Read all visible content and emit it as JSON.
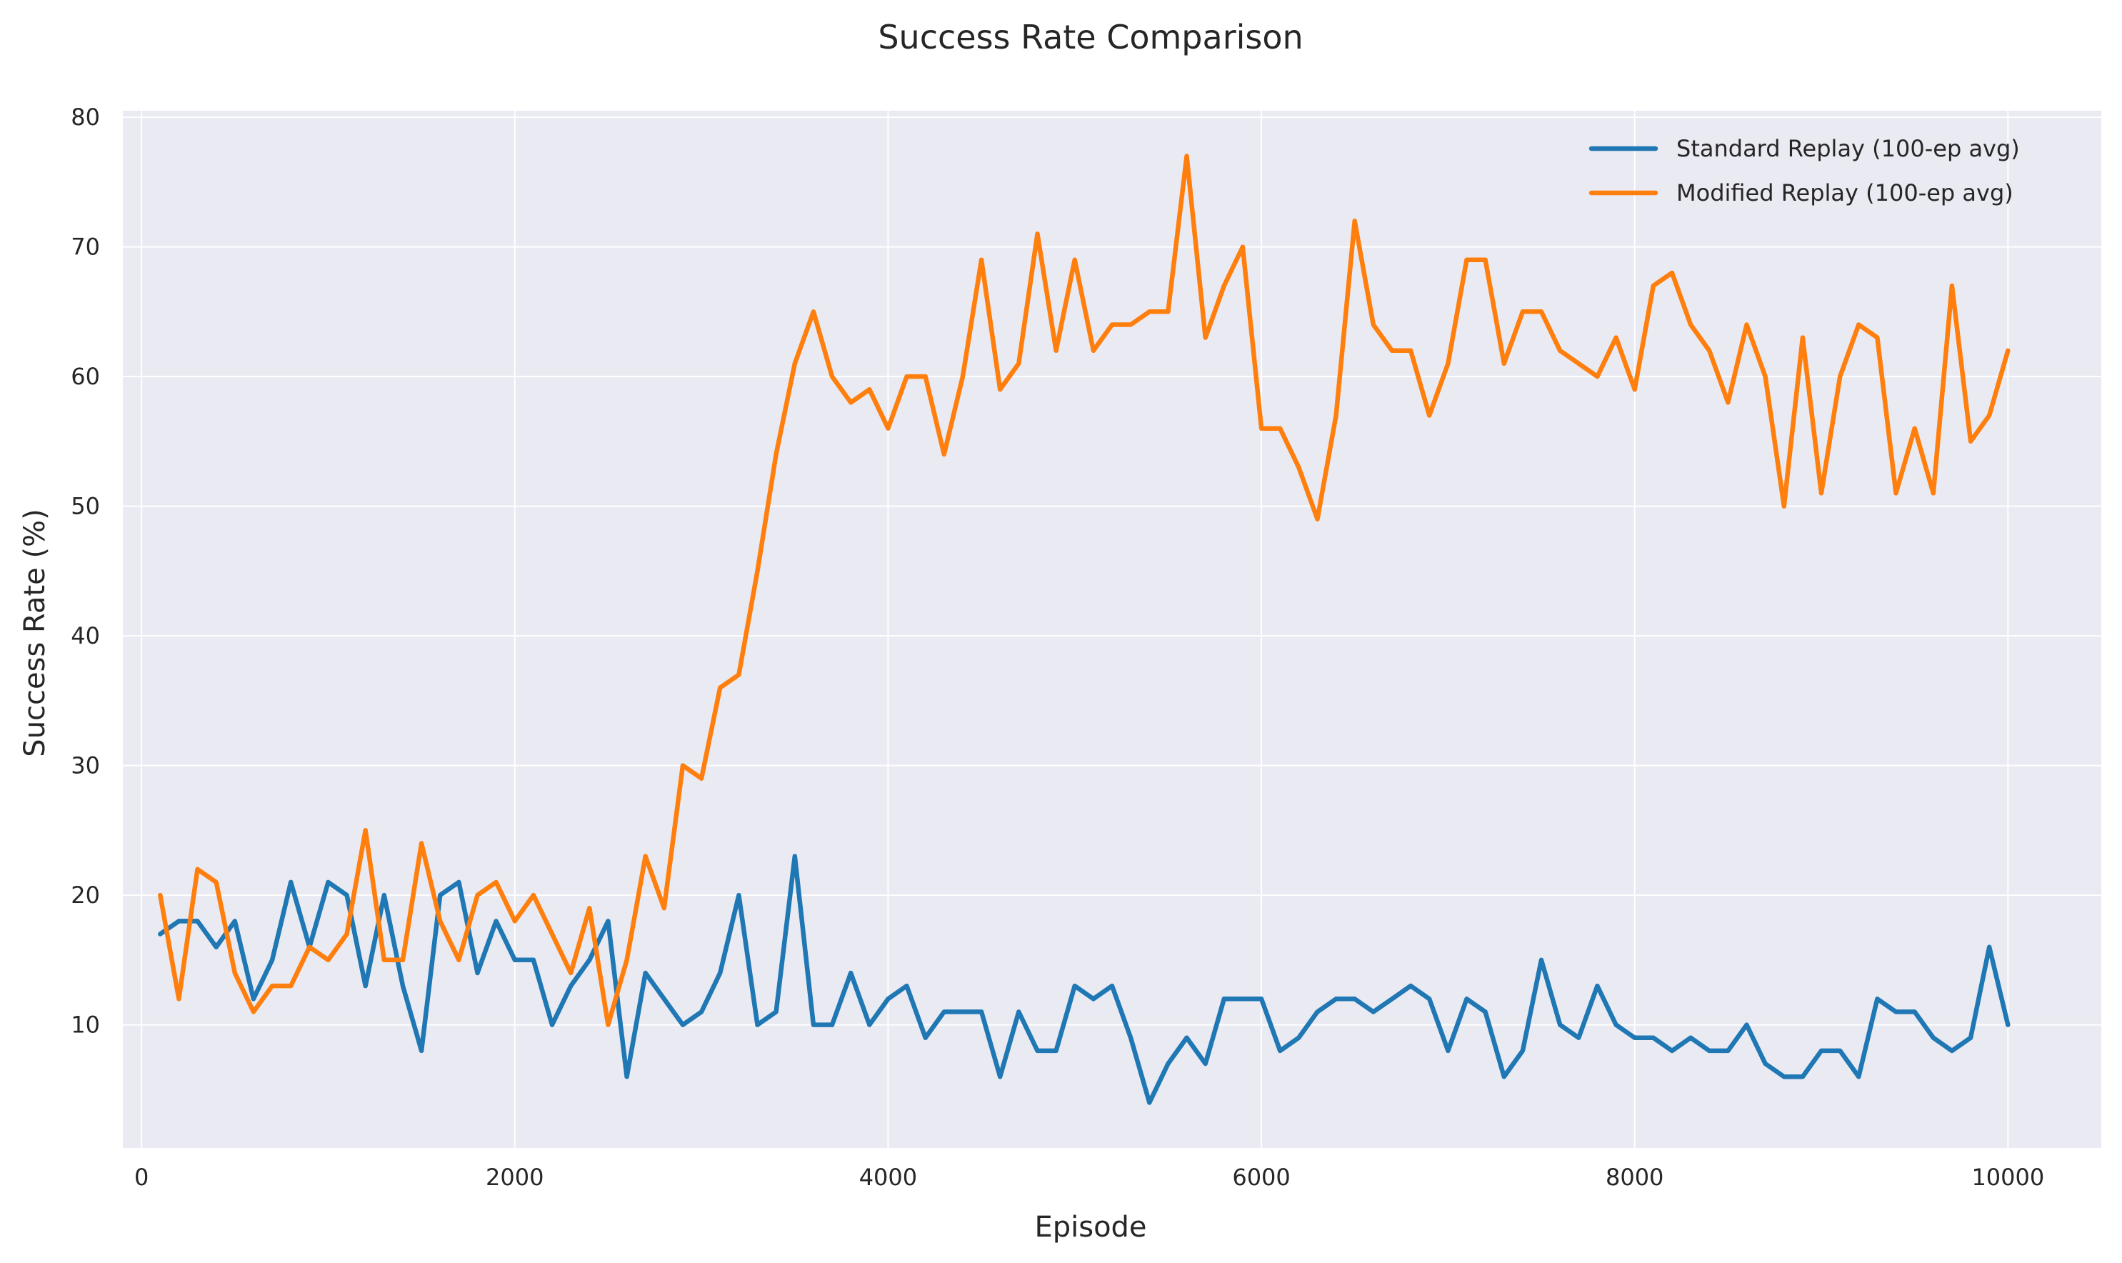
{
  "chart_data": {
    "type": "line",
    "title": "Success Rate Comparison",
    "xlabel": "Episode",
    "ylabel": "Success Rate (%)",
    "xlim": [
      -100,
      10500
    ],
    "ylim": [
      0.5,
      80.5
    ],
    "x_ticks": [
      0,
      2000,
      4000,
      6000,
      8000,
      10000
    ],
    "y_ticks": [
      10,
      20,
      30,
      40,
      50,
      60,
      70,
      80
    ],
    "grid": true,
    "legend_position": "top-right",
    "x": [
      100,
      200,
      300,
      400,
      500,
      600,
      700,
      800,
      900,
      1000,
      1100,
      1200,
      1300,
      1400,
      1500,
      1600,
      1700,
      1800,
      1900,
      2000,
      2100,
      2200,
      2300,
      2400,
      2500,
      2600,
      2700,
      2800,
      2900,
      3000,
      3100,
      3200,
      3300,
      3400,
      3500,
      3600,
      3700,
      3800,
      3900,
      4000,
      4100,
      4200,
      4300,
      4400,
      4500,
      4600,
      4700,
      4800,
      4900,
      5000,
      5100,
      5200,
      5300,
      5400,
      5500,
      5600,
      5700,
      5800,
      5900,
      6000,
      6100,
      6200,
      6300,
      6400,
      6500,
      6600,
      6700,
      6800,
      6900,
      7000,
      7100,
      7200,
      7300,
      7400,
      7500,
      7600,
      7700,
      7800,
      7900,
      8000,
      8100,
      8200,
      8300,
      8400,
      8500,
      8600,
      8700,
      8800,
      8900,
      9000,
      9100,
      9200,
      9300,
      9400,
      9500,
      9600,
      9700,
      9800,
      9900,
      10000
    ],
    "series": [
      {
        "name": "Standard Replay (100-ep avg)",
        "color": "#1f77b4",
        "values": [
          17,
          18,
          18,
          16,
          18,
          12,
          15,
          21,
          16,
          21,
          20,
          13,
          20,
          13,
          8,
          20,
          21,
          14,
          18,
          15,
          15,
          10,
          13,
          15,
          18,
          6,
          14,
          12,
          10,
          11,
          14,
          20,
          10,
          11,
          23,
          10,
          10,
          14,
          10,
          12,
          13,
          9,
          11,
          11,
          11,
          6,
          11,
          8,
          8,
          13,
          12,
          13,
          9,
          4,
          7,
          9,
          7,
          12,
          12,
          12,
          8,
          9,
          11,
          12,
          12,
          11,
          12,
          13,
          12,
          8,
          12,
          11,
          6,
          8,
          15,
          10,
          9,
          13,
          10,
          9,
          9,
          8,
          9,
          8,
          8,
          10,
          7,
          6,
          6,
          8,
          8,
          6,
          12,
          11,
          11,
          9,
          8,
          9,
          16,
          10
        ]
      },
      {
        "name": "Modified Replay (100-ep avg)",
        "color": "#ff7f0e",
        "values": [
          20,
          12,
          22,
          21,
          14,
          11,
          13,
          13,
          16,
          15,
          17,
          25,
          15,
          15,
          24,
          18,
          15,
          20,
          21,
          18,
          20,
          17,
          14,
          19,
          10,
          15,
          23,
          19,
          30,
          29,
          36,
          37,
          45,
          54,
          61,
          65,
          60,
          58,
          59,
          56,
          60,
          60,
          54,
          60,
          69,
          59,
          61,
          71,
          62,
          69,
          62,
          64,
          64,
          65,
          65,
          77,
          63,
          67,
          70,
          56,
          56,
          53,
          49,
          57,
          72,
          64,
          62,
          62,
          57,
          61,
          69,
          69,
          61,
          65,
          65,
          62,
          61,
          60,
          63,
          59,
          67,
          68,
          64,
          62,
          58,
          64,
          60,
          50,
          63,
          51,
          60,
          64,
          63,
          51,
          56,
          51,
          67,
          55,
          57,
          62
        ]
      }
    ]
  }
}
